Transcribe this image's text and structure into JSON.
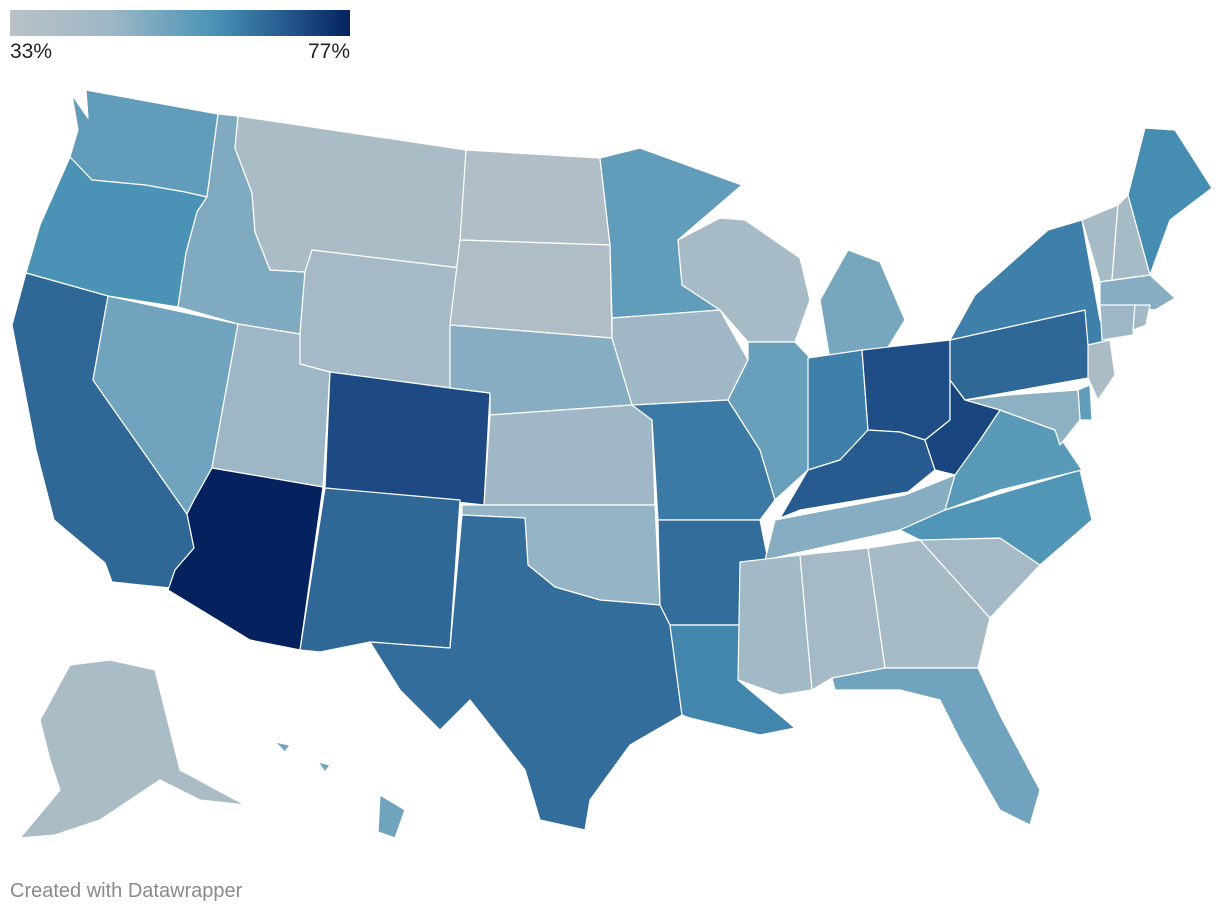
{
  "legend": {
    "min_label": "33%",
    "max_label": "77%",
    "min_value": 33,
    "max_value": 77,
    "color_stops": [
      "#b9c1c7",
      "#9db7c6",
      "#4a93b6",
      "#1f4e86",
      "#05225e"
    ]
  },
  "credit": "Created with Datawrapper",
  "states": [
    {
      "id": "WA",
      "value": 52
    },
    {
      "id": "OR",
      "value": 55
    },
    {
      "id": "CA",
      "value": 62
    },
    {
      "id": "NV",
      "value": 50
    },
    {
      "id": "ID",
      "value": 48
    },
    {
      "id": "MT",
      "value": 39
    },
    {
      "id": "WY",
      "value": 41
    },
    {
      "id": "UT",
      "value": 44
    },
    {
      "id": "AZ",
      "value": 77
    },
    {
      "id": "CO",
      "value": 67
    },
    {
      "id": "NM",
      "value": 62
    },
    {
      "id": "ND",
      "value": 36
    },
    {
      "id": "SD",
      "value": 37
    },
    {
      "id": "NE",
      "value": 47
    },
    {
      "id": "KS",
      "value": 43
    },
    {
      "id": "OK",
      "value": 45
    },
    {
      "id": "TX",
      "value": 61
    },
    {
      "id": "MN",
      "value": 52
    },
    {
      "id": "IA",
      "value": 43
    },
    {
      "id": "MO",
      "value": 59
    },
    {
      "id": "AR",
      "value": 61
    },
    {
      "id": "LA",
      "value": 57
    },
    {
      "id": "WI",
      "value": 40
    },
    {
      "id": "IL",
      "value": 51
    },
    {
      "id": "MI",
      "value": 49
    },
    {
      "id": "IN",
      "value": 58
    },
    {
      "id": "OH",
      "value": 66
    },
    {
      "id": "KY",
      "value": 64
    },
    {
      "id": "TN",
      "value": 47
    },
    {
      "id": "MS",
      "value": 42
    },
    {
      "id": "AL",
      "value": 41
    },
    {
      "id": "GA",
      "value": 40
    },
    {
      "id": "FL",
      "value": 50
    },
    {
      "id": "SC",
      "value": 41
    },
    {
      "id": "NC",
      "value": 54
    },
    {
      "id": "VA",
      "value": 53
    },
    {
      "id": "WV",
      "value": 68
    },
    {
      "id": "PA",
      "value": 62
    },
    {
      "id": "NY",
      "value": 58
    },
    {
      "id": "VT",
      "value": 40
    },
    {
      "id": "NH",
      "value": 40
    },
    {
      "id": "ME",
      "value": 56
    },
    {
      "id": "MA",
      "value": 47
    },
    {
      "id": "CT",
      "value": 44
    },
    {
      "id": "RI",
      "value": 42
    },
    {
      "id": "NJ",
      "value": 38
    },
    {
      "id": "DE",
      "value": 52
    },
    {
      "id": "MD",
      "value": 46
    },
    {
      "id": "AK",
      "value": 39
    },
    {
      "id": "HI",
      "value": 50
    }
  ]
}
